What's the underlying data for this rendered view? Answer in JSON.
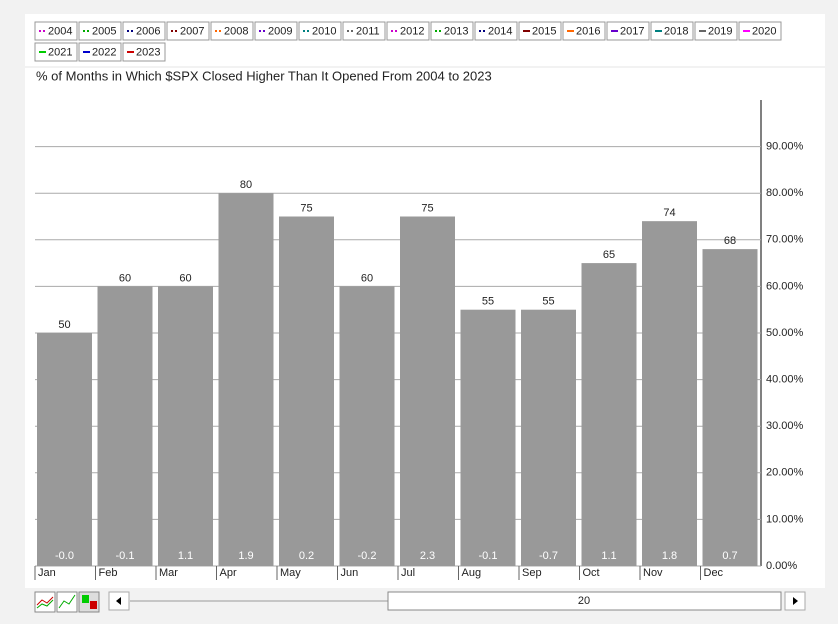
{
  "chart_data": {
    "type": "bar",
    "title": "% of Months in Which $SPX Closed Higher Than It Opened From 2004 to 2023",
    "categories": [
      "Jan",
      "Feb",
      "Mar",
      "Apr",
      "May",
      "Jun",
      "Jul",
      "Aug",
      "Sep",
      "Oct",
      "Nov",
      "Dec"
    ],
    "values": [
      50,
      60,
      60,
      80,
      75,
      60,
      75,
      55,
      55,
      65,
      74,
      68
    ],
    "change_labels": [
      "-0.0",
      "-0.1",
      "1.1",
      "1.9",
      "0.2",
      "-0.2",
      "2.3",
      "-0.1",
      "-0.7",
      "1.1",
      "1.8",
      "0.7"
    ],
    "color": "#999999",
    "ylim": [
      0,
      100
    ],
    "yticks": [
      {
        "value": 0,
        "label": "0.00%"
      },
      {
        "value": 10,
        "label": "10.00%"
      },
      {
        "value": 20,
        "label": "20.00%"
      },
      {
        "value": 30,
        "label": "30.00%"
      },
      {
        "value": 40,
        "label": "40.00%"
      },
      {
        "value": 50,
        "label": "50.00%"
      },
      {
        "value": 60,
        "label": "60.00%"
      },
      {
        "value": 70,
        "label": "70.00%"
      },
      {
        "value": 80,
        "label": "80.00%"
      },
      {
        "value": 90,
        "label": "90.00%"
      }
    ],
    "grid": true,
    "legend": [
      {
        "label": "2004",
        "color": "#cc00cc",
        "dotted": true
      },
      {
        "label": "2005",
        "color": "#00aa00",
        "dotted": true
      },
      {
        "label": "2006",
        "color": "#000080",
        "dotted": true
      },
      {
        "label": "2007",
        "color": "#800000",
        "dotted": true
      },
      {
        "label": "2008",
        "color": "#ff6600",
        "dotted": true
      },
      {
        "label": "2009",
        "color": "#6600cc",
        "dotted": true
      },
      {
        "label": "2010",
        "color": "#008080",
        "dotted": true
      },
      {
        "label": "2011",
        "color": "#666666",
        "dotted": true
      },
      {
        "label": "2012",
        "color": "#cc00cc",
        "dotted": true
      },
      {
        "label": "2013",
        "color": "#00aa00",
        "dotted": true
      },
      {
        "label": "2014",
        "color": "#000080",
        "dotted": true
      },
      {
        "label": "2015",
        "color": "#800000",
        "dotted": false
      },
      {
        "label": "2016",
        "color": "#ff6600",
        "dotted": false
      },
      {
        "label": "2017",
        "color": "#6600cc",
        "dotted": false
      },
      {
        "label": "2018",
        "color": "#008080",
        "dotted": false
      },
      {
        "label": "2019",
        "color": "#666666",
        "dotted": false
      },
      {
        "label": "2020",
        "color": "#ff00ff",
        "dotted": false
      },
      {
        "label": "2021",
        "color": "#00cc00",
        "dotted": false
      },
      {
        "label": "2022",
        "color": "#0000cc",
        "dotted": false
      },
      {
        "label": "2023",
        "color": "#cc0000",
        "dotted": false
      }
    ],
    "slider_label": "20"
  }
}
